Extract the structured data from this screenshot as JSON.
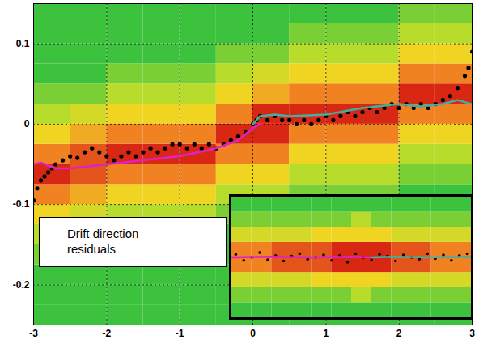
{
  "chart_data": [
    {
      "type": "heatmap",
      "annotation": "Drift direction residuals",
      "xlim": [
        -3,
        3
      ],
      "xticks": [
        -3,
        -2,
        -1,
        0,
        1,
        2,
        3
      ],
      "ylim": [
        -0.25,
        0.15
      ],
      "yticks": [
        -0.2,
        -0.1,
        0,
        0.1
      ],
      "grid": true,
      "heatmap": {
        "x_edges": [
          -3,
          -2.5,
          -2,
          -1.5,
          -1,
          -0.5,
          0,
          0.5,
          1,
          1.5,
          2,
          2.5,
          3
        ],
        "y_edges": [
          -0.25,
          -0.225,
          -0.2,
          -0.175,
          -0.15,
          -0.125,
          -0.1,
          -0.075,
          -0.05,
          -0.025,
          0,
          0.025,
          0.05,
          0.075,
          0.1,
          0.125,
          0.15
        ],
        "density": [
          [
            1,
            1,
            1,
            2,
            3,
            5,
            7,
            9,
            7,
            5,
            3,
            2,
            1,
            1,
            1,
            1
          ],
          [
            1,
            1,
            1,
            1,
            3,
            4,
            6,
            8,
            8,
            6,
            4,
            2,
            1,
            1,
            1,
            1
          ],
          [
            1,
            1,
            1,
            1,
            2,
            3,
            5,
            7,
            9,
            7,
            5,
            3,
            2,
            1,
            1,
            1
          ],
          [
            1,
            1,
            1,
            1,
            2,
            3,
            5,
            7,
            9,
            7,
            5,
            3,
            2,
            1,
            1,
            1
          ],
          [
            1,
            1,
            1,
            1,
            2,
            3,
            5,
            7,
            9,
            7,
            5,
            3,
            2,
            1,
            1,
            1
          ],
          [
            1,
            1,
            1,
            1,
            1,
            2,
            3,
            5,
            7,
            9,
            7,
            5,
            3,
            2,
            1,
            1
          ],
          [
            1,
            1,
            1,
            1,
            1,
            2,
            3,
            5,
            7,
            9,
            9,
            6,
            4,
            2,
            1,
            1
          ],
          [
            1,
            1,
            1,
            1,
            1,
            1,
            2,
            3,
            5,
            7,
            9,
            7,
            5,
            3,
            2,
            1
          ],
          [
            1,
            1,
            1,
            1,
            1,
            1,
            2,
            3,
            5,
            7,
            9,
            7,
            5,
            3,
            2,
            1
          ],
          [
            1,
            1,
            1,
            1,
            1,
            1,
            2,
            3,
            5,
            7,
            9,
            7,
            5,
            3,
            2,
            1
          ],
          [
            1,
            1,
            1,
            1,
            1,
            1,
            1,
            2,
            3,
            5,
            7,
            9,
            7,
            5,
            3,
            2
          ],
          [
            1,
            1,
            1,
            1,
            1,
            1,
            1,
            2,
            3,
            5,
            7,
            9,
            7,
            5,
            3,
            2
          ]
        ]
      },
      "series": [
        {
          "type": "scatter",
          "color": "#000000",
          "marker": "circle",
          "x": [
            -3,
            -2.95,
            -2.9,
            -2.85,
            -2.8,
            -2.75,
            -2.7,
            -2.6,
            -2.5,
            -2.4,
            -2.3,
            -2.2,
            -2.1,
            -2.0,
            -1.9,
            -1.8,
            -1.7,
            -1.6,
            -1.5,
            -1.4,
            -1.3,
            -1.2,
            -1.1,
            -1.0,
            -0.9,
            -0.8,
            -0.7,
            -0.6,
            -0.5,
            -0.4,
            -0.3,
            -0.2,
            -0.1,
            0.0,
            0.05,
            0.1,
            0.2,
            0.3,
            0.4,
            0.5,
            0.6,
            0.7,
            0.8,
            0.9,
            1.0,
            1.1,
            1.2,
            1.3,
            1.4,
            1.5,
            1.6,
            1.7,
            1.8,
            1.9,
            2.0,
            2.1,
            2.2,
            2.3,
            2.4,
            2.5,
            2.6,
            2.7,
            2.8,
            2.9,
            2.95,
            3.0
          ],
          "values": [
            -0.095,
            -0.08,
            -0.07,
            -0.065,
            -0.06,
            -0.055,
            -0.05,
            -0.045,
            -0.04,
            -0.042,
            -0.035,
            -0.03,
            -0.035,
            -0.04,
            -0.045,
            -0.04,
            -0.035,
            -0.04,
            -0.035,
            -0.03,
            -0.035,
            -0.03,
            -0.025,
            -0.025,
            -0.03,
            -0.025,
            -0.03,
            -0.025,
            -0.03,
            -0.025,
            -0.02,
            -0.015,
            -0.01,
            0.0,
            0.005,
            0.01,
            0.005,
            0.01,
            0.005,
            0.005,
            0.0,
            0.005,
            0.0,
            0.005,
            0.01,
            0.005,
            0.01,
            0.015,
            0.01,
            0.015,
            0.02,
            0.015,
            0.02,
            0.025,
            0.02,
            0.025,
            0.02,
            0.025,
            0.02,
            0.025,
            0.03,
            0.035,
            0.045,
            0.06,
            0.07,
            0.09
          ]
        },
        {
          "type": "line",
          "color": "#e020c8",
          "line_style": "solid",
          "x": [
            -3,
            -2.9,
            -2.7,
            -2.5,
            -2.0,
            -1.5,
            -1.0,
            -0.5,
            -0.2,
            0.0,
            0.1
          ],
          "values": [
            -0.05,
            -0.048,
            -0.055,
            -0.055,
            -0.05,
            -0.045,
            -0.04,
            -0.03,
            -0.02,
            -0.005,
            0.0
          ]
        },
        {
          "type": "line",
          "color": "#40b0a0",
          "line_style": "solid",
          "x": [
            0.0,
            0.1,
            0.3,
            0.5,
            1.0,
            1.5,
            2.0,
            2.3,
            2.6,
            2.8,
            3.0
          ],
          "values": [
            0.0,
            0.01,
            0.012,
            0.01,
            0.012,
            0.02,
            0.025,
            0.022,
            0.025,
            0.03,
            0.025
          ]
        }
      ]
    },
    {
      "type": "heatmap",
      "tick_labels": false,
      "grid": false,
      "xlim": [
        -3,
        3
      ],
      "ylim": [
        -0.1,
        0.1
      ],
      "heatmap": {
        "x_edges": [
          -3,
          -2.5,
          -2,
          -1.5,
          -1,
          -0.5,
          0,
          0.5,
          1,
          1.5,
          2,
          2.5,
          3
        ],
        "y_edges": [
          -0.1,
          -0.075,
          -0.05,
          -0.025,
          0,
          0.025,
          0.05,
          0.075,
          0.1
        ],
        "density": [
          [
            1,
            2,
            4,
            7,
            7,
            4,
            2,
            1
          ],
          [
            1,
            2,
            4,
            7,
            7,
            4,
            2,
            1
          ],
          [
            1,
            2,
            4,
            8,
            8,
            4,
            2,
            1
          ],
          [
            1,
            2,
            4,
            8,
            8,
            4,
            2,
            1
          ],
          [
            1,
            2,
            5,
            8,
            8,
            5,
            2,
            1
          ],
          [
            1,
            2,
            5,
            9,
            9,
            5,
            2,
            1
          ],
          [
            1,
            3,
            5,
            9,
            9,
            5,
            3,
            1
          ],
          [
            1,
            2,
            5,
            9,
            9,
            5,
            2,
            1
          ],
          [
            1,
            2,
            4,
            8,
            8,
            4,
            2,
            1
          ],
          [
            1,
            2,
            4,
            8,
            8,
            4,
            2,
            1
          ],
          [
            1,
            2,
            4,
            7,
            7,
            4,
            2,
            1
          ],
          [
            1,
            2,
            4,
            7,
            7,
            4,
            2,
            1
          ]
        ]
      },
      "series": [
        {
          "type": "scatter",
          "color": "#000000",
          "marker": "circle",
          "x": [
            -2.9,
            -2.7,
            -2.5,
            -2.3,
            -2.1,
            -1.9,
            -1.7,
            -1.5,
            -1.3,
            -1.1,
            -0.9,
            -0.7,
            -0.5,
            -0.3,
            -0.1,
            0.1,
            0.3,
            0.5,
            0.7,
            0.9,
            1.1,
            1.3,
            1.5,
            1.7,
            1.9,
            2.1,
            2.3,
            2.5,
            2.7,
            2.9
          ],
          "values": [
            0.005,
            -0.005,
            0.0,
            0.008,
            -0.004,
            0.003,
            -0.006,
            0.002,
            0.006,
            -0.003,
            0.0,
            0.004,
            -0.005,
            0.003,
            -0.008,
            0.006,
            0.0,
            -0.004,
            0.005,
            0.002,
            -0.006,
            0.004,
            0.0,
            -0.003,
            0.006,
            -0.002,
            0.004,
            -0.005,
            0.003,
            0.006
          ]
        },
        {
          "type": "line",
          "color": "#e020c8",
          "line_style": "solid",
          "x": [
            -3,
            -2,
            -1,
            0,
            0.5
          ],
          "values": [
            0.0,
            0.001,
            0.0,
            0.001,
            0.0
          ]
        },
        {
          "type": "line",
          "color": "#40b0a0",
          "line_style": "solid",
          "x": [
            0.5,
            1,
            2,
            3
          ],
          "values": [
            0.0,
            0.001,
            0.0,
            0.001
          ]
        }
      ]
    }
  ]
}
